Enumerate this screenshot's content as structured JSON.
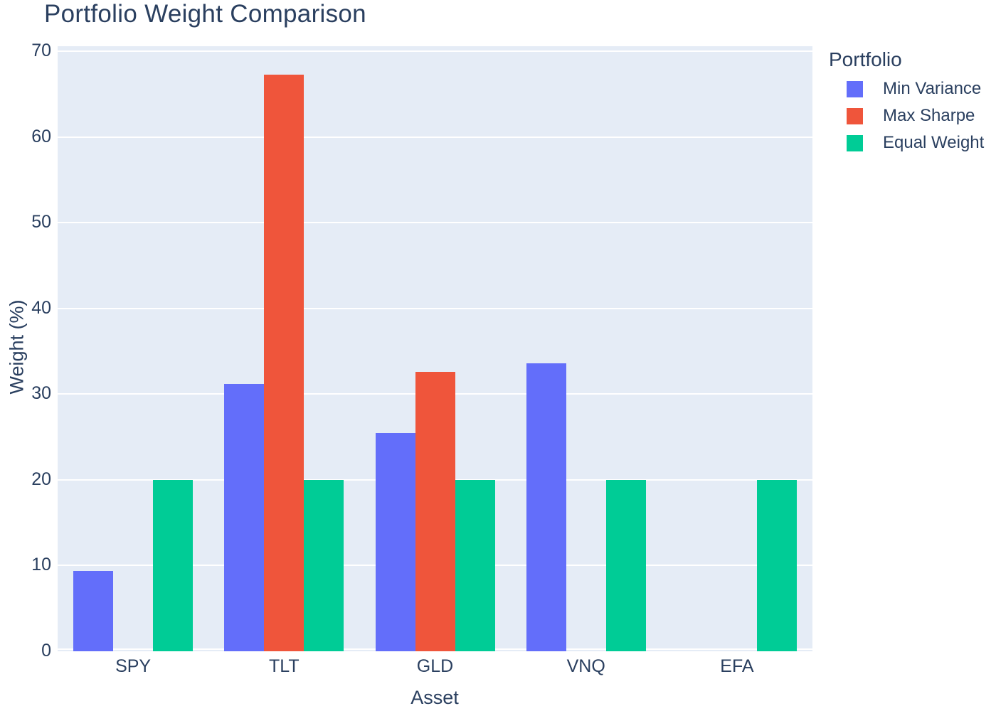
{
  "title": "Portfolio Weight Comparison",
  "legend": {
    "title": "Portfolio",
    "items": [
      {
        "label": "Min Variance",
        "color": "#636EFA"
      },
      {
        "label": "Max Sharpe",
        "color": "#EF553B"
      },
      {
        "label": "Equal Weight",
        "color": "#00CC96"
      }
    ]
  },
  "colors": {
    "plot_background": "#E5ECF6",
    "paper_background": "#FFFFFF",
    "text": "#2A3F5F",
    "gridline": "#FFFFFF",
    "min_variance": "#636EFA",
    "max_sharpe": "#EF553B",
    "equal_weight": "#00CC96"
  },
  "chart_data": {
    "type": "bar",
    "title": "Portfolio Weight Comparison",
    "xlabel": "Asset",
    "ylabel": "Weight (%)",
    "categories": [
      "SPY",
      "TLT",
      "GLD",
      "VNQ",
      "EFA"
    ],
    "series": [
      {
        "name": "Min Variance",
        "color": "#636EFA",
        "values": [
          9.4,
          31.2,
          25.5,
          33.6,
          0
        ]
      },
      {
        "name": "Max Sharpe",
        "color": "#EF553B",
        "values": [
          0,
          67.3,
          32.6,
          0,
          0
        ]
      },
      {
        "name": "Equal Weight",
        "color": "#00CC96",
        "values": [
          20,
          20,
          20,
          20,
          20
        ]
      }
    ],
    "yticks": [
      0,
      10,
      20,
      30,
      40,
      50,
      60,
      70
    ],
    "ylim": [
      0,
      70.6
    ],
    "grid": true,
    "legend_position": "right",
    "bar_mode": "group"
  }
}
